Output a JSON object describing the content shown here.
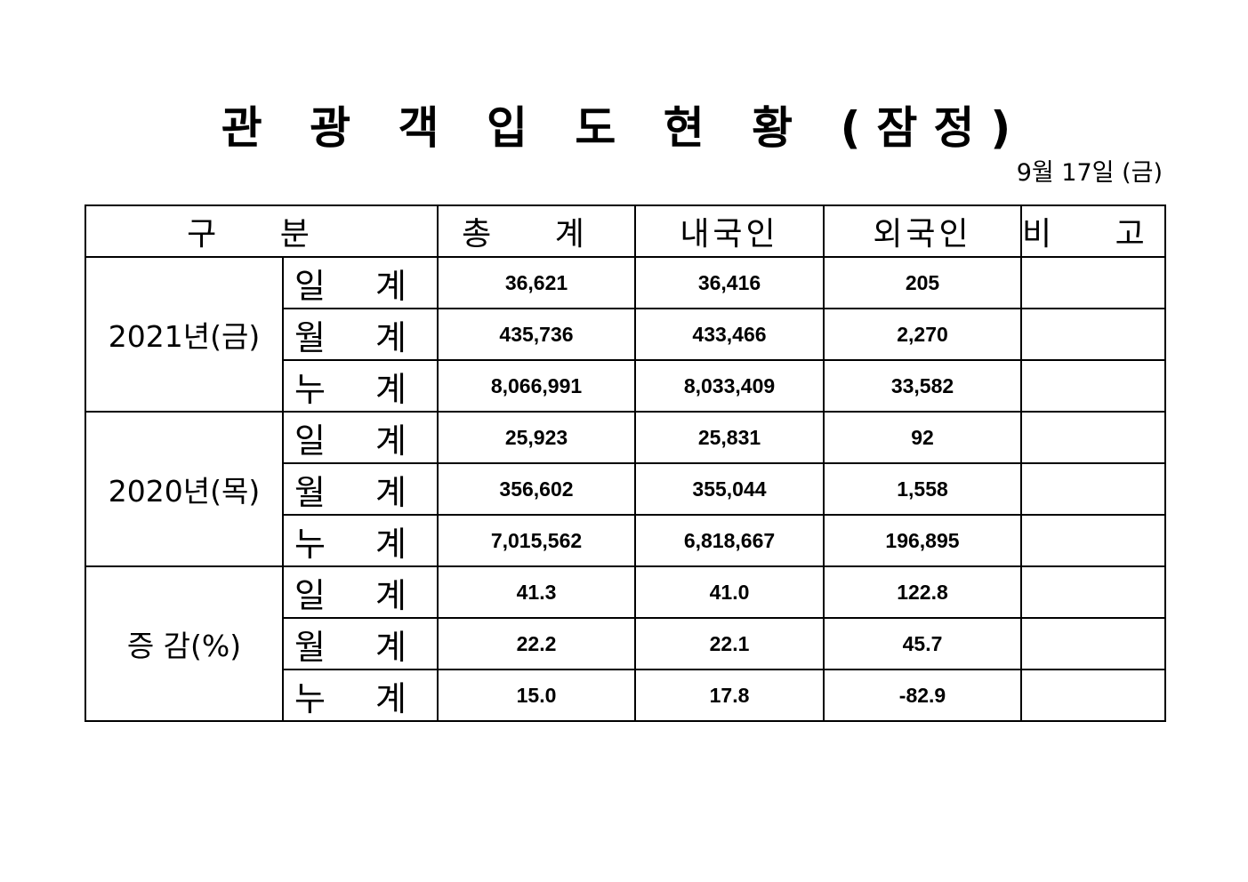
{
  "title": "관 광 객 입 도 현 황 (잠정)",
  "date": "9월  17일 (금)",
  "headers": {
    "category": "구  분",
    "total": "총  계",
    "domestic": "내국인",
    "foreign": "외국인",
    "remarks": "비  고"
  },
  "groups": [
    {
      "label": "2021년(금)",
      "rows": [
        {
          "label": "일 계",
          "total": "36,621",
          "domestic": "36,416",
          "foreign": "205",
          "remarks": ""
        },
        {
          "label": "월 계",
          "total": "435,736",
          "domestic": "433,466",
          "foreign": "2,270",
          "remarks": ""
        },
        {
          "label": "누 계",
          "total": "8,066,991",
          "domestic": "8,033,409",
          "foreign": "33,582",
          "remarks": ""
        }
      ]
    },
    {
      "label": "2020년(목)",
      "rows": [
        {
          "label": "일 계",
          "total": "25,923",
          "domestic": "25,831",
          "foreign": "92",
          "remarks": ""
        },
        {
          "label": "월 계",
          "total": "356,602",
          "domestic": "355,044",
          "foreign": "1,558",
          "remarks": ""
        },
        {
          "label": "누 계",
          "total": "7,015,562",
          "domestic": "6,818,667",
          "foreign": "196,895",
          "remarks": ""
        }
      ]
    },
    {
      "label": "증 감(%)",
      "rows": [
        {
          "label": "일 계",
          "total": "41.3",
          "domestic": "41.0",
          "foreign": "122.8",
          "remarks": ""
        },
        {
          "label": "월 계",
          "total": "22.2",
          "domestic": "22.1",
          "foreign": "45.7",
          "remarks": ""
        },
        {
          "label": "누 계",
          "total": "15.0",
          "domestic": "17.8",
          "foreign": "-82.9",
          "remarks": ""
        }
      ]
    }
  ]
}
